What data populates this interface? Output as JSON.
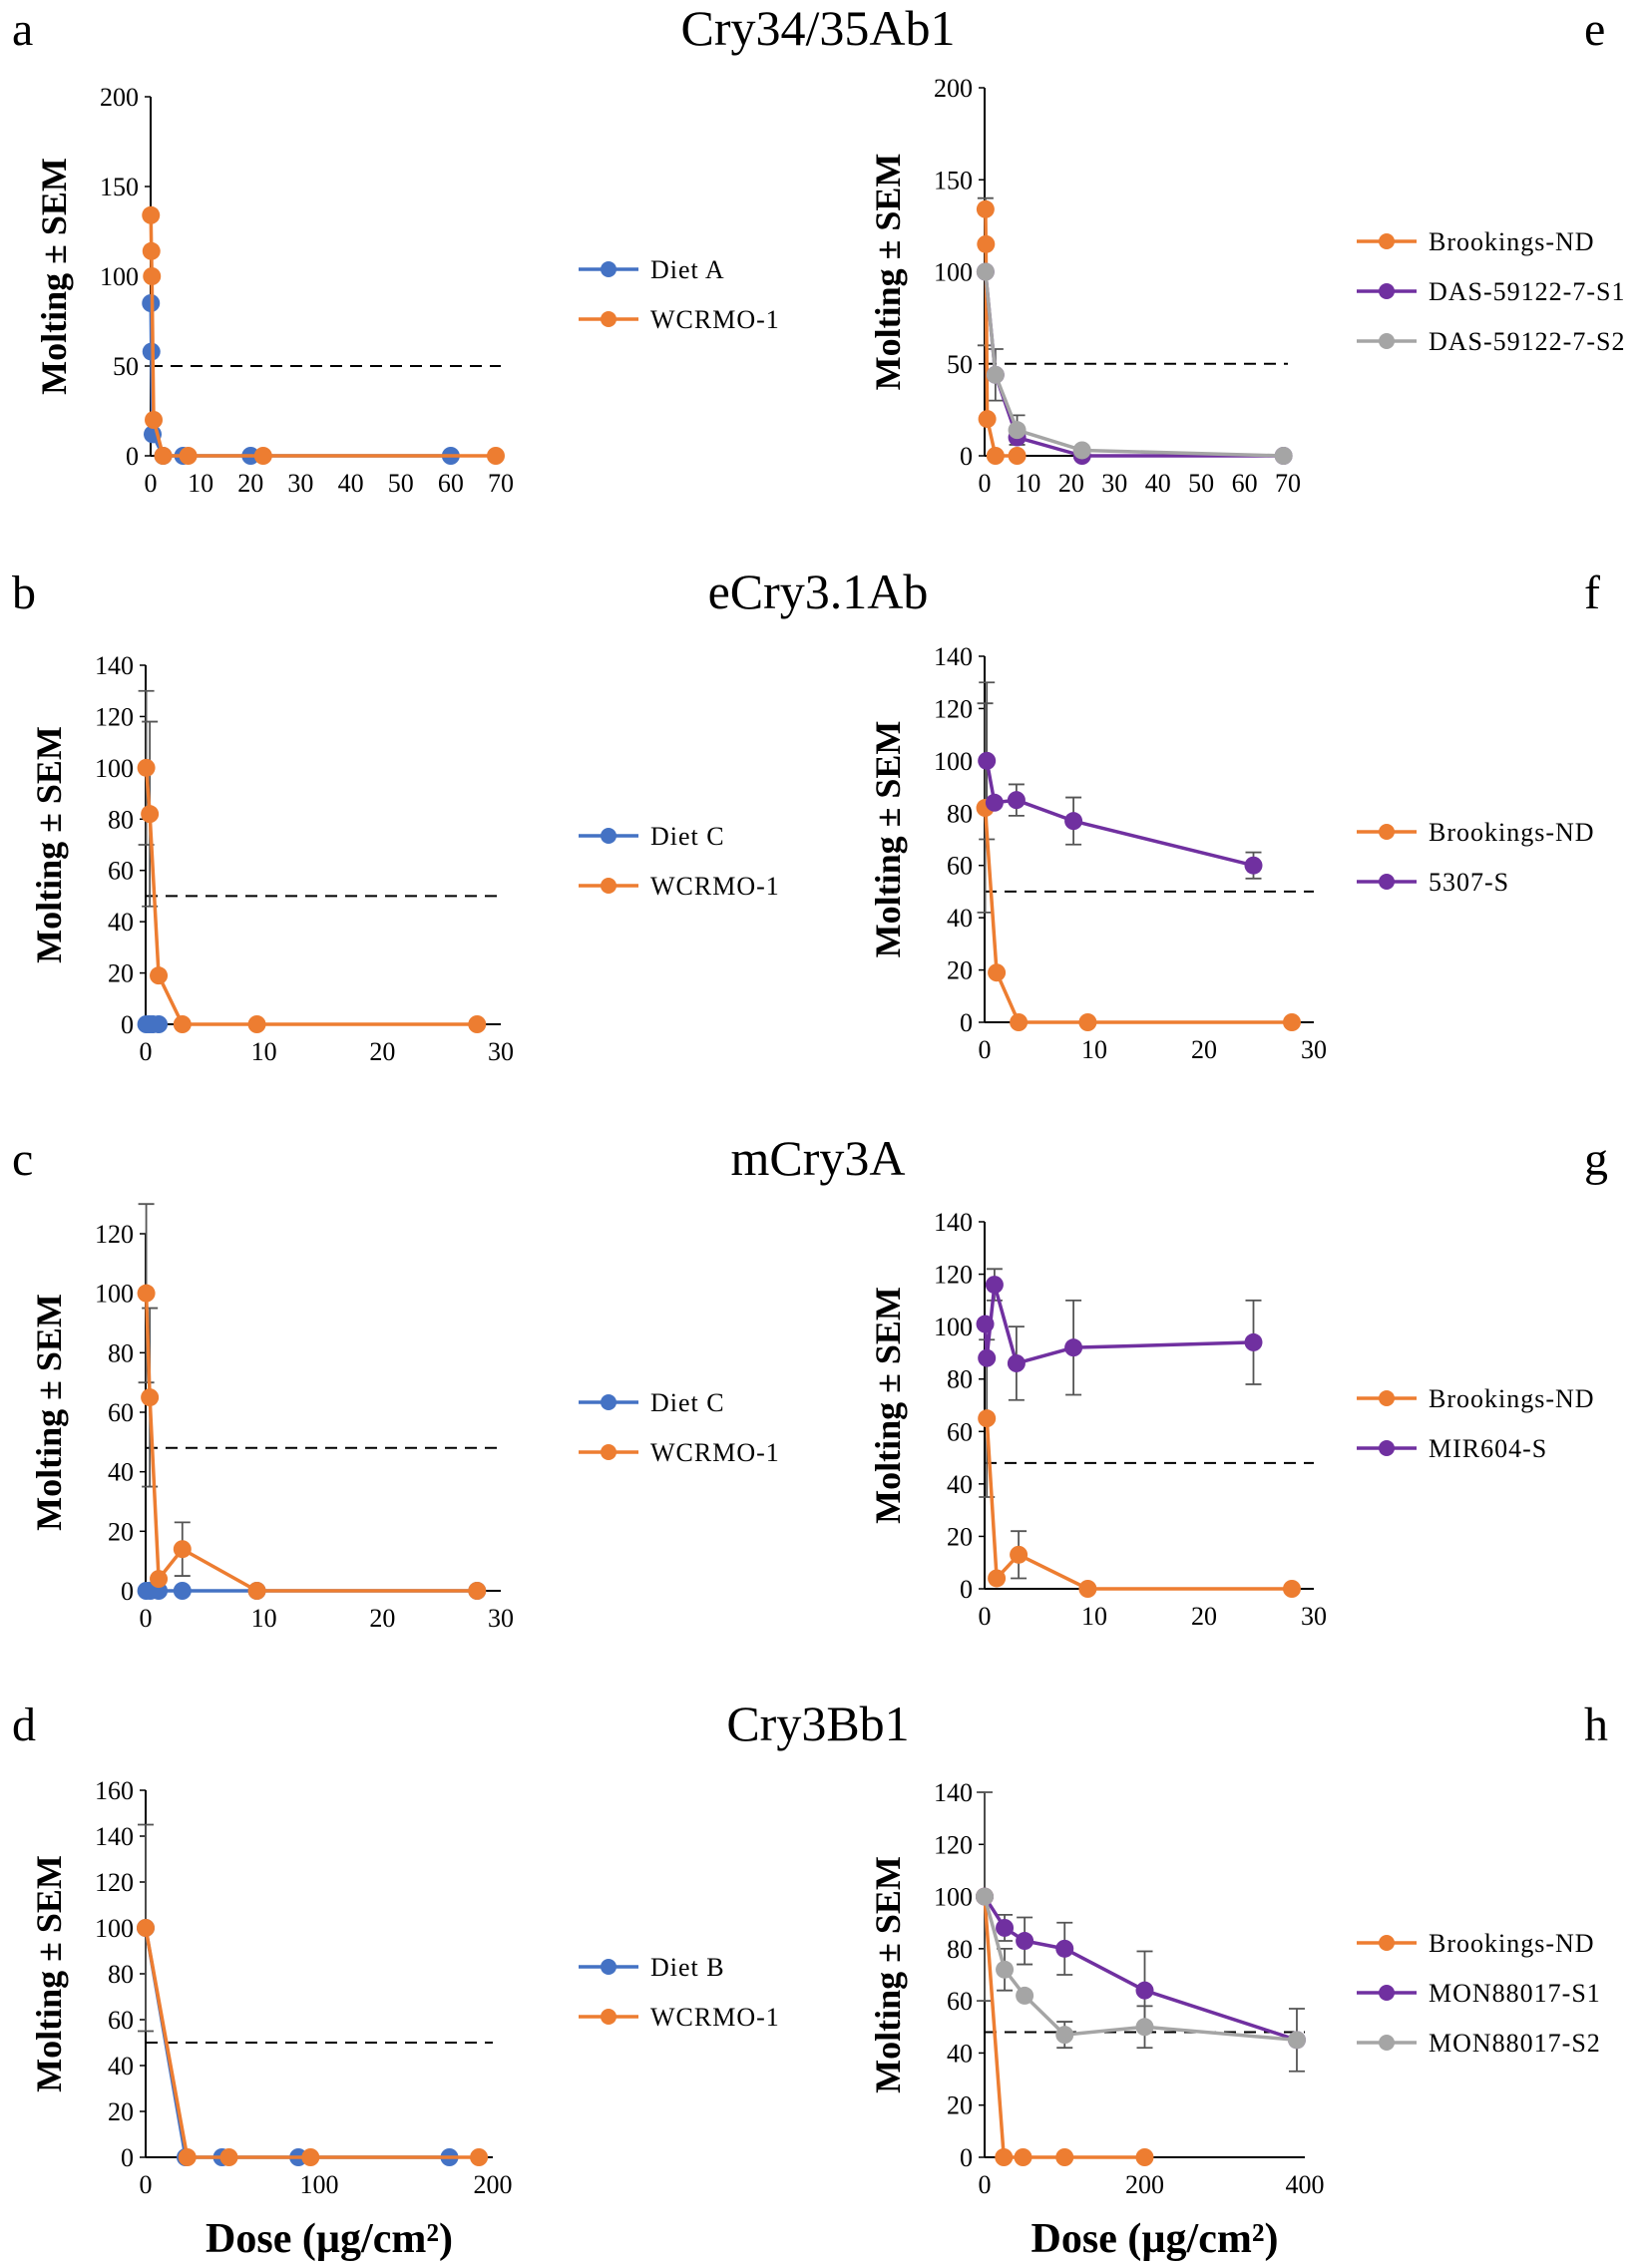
{
  "figure": {
    "row_titles": [
      "Cry34/35Ab1",
      "eCry3.1Ab",
      "mCry3A",
      "Cry3Bb1"
    ],
    "ylabel": "Molting ± SEM",
    "xlabel": "Dose (µg/cm²)"
  },
  "colors": {
    "blue": "#4472C4",
    "orange": "#ED7D31",
    "purple": "#7030A0",
    "gray": "#A5A5A5",
    "dash": "#000000",
    "errbar": "#555555"
  },
  "chart_data": [
    {
      "id": "a",
      "panel_label": "a",
      "type": "line",
      "ylabel": "Molting ± SEM",
      "xlabel": "",
      "xlim": [
        0,
        70
      ],
      "ylim": [
        0,
        200
      ],
      "xticks": [
        0,
        10,
        20,
        30,
        40,
        50,
        60,
        70
      ],
      "yticks": [
        0,
        50,
        100,
        150,
        200
      ],
      "threshold": 50,
      "series": [
        {
          "name": "Diet A",
          "color": "blue",
          "points": [
            [
              0.05,
              85
            ],
            [
              0.15,
              58
            ],
            [
              0.4,
              12
            ],
            [
              2.5,
              0
            ],
            [
              6.5,
              0
            ],
            [
              20,
              0
            ],
            [
              60,
              0
            ]
          ]
        },
        {
          "name": "WCRMO-1",
          "color": "orange",
          "points": [
            [
              0.05,
              134
            ],
            [
              0.15,
              114
            ],
            [
              0.25,
              100
            ],
            [
              0.6,
              20
            ],
            [
              2.5,
              0
            ],
            [
              7.5,
              0
            ],
            [
              22.5,
              0
            ],
            [
              69,
              0
            ]
          ]
        }
      ],
      "errors": []
    },
    {
      "id": "e",
      "panel_label": "e",
      "type": "line",
      "ylabel": "Molting ± SEM",
      "xlabel": "",
      "xlim": [
        0,
        70
      ],
      "ylim": [
        0,
        200
      ],
      "xticks": [
        0,
        10,
        20,
        30,
        40,
        50,
        60,
        70
      ],
      "yticks": [
        0,
        50,
        100,
        150,
        200
      ],
      "threshold": 50,
      "series": [
        {
          "name": "Brookings-ND",
          "color": "orange",
          "points": [
            [
              0.2,
              134
            ],
            [
              0.3,
              115
            ],
            [
              0.6,
              20
            ],
            [
              2.5,
              0
            ],
            [
              7.5,
              0
            ]
          ]
        },
        {
          "name": "DAS-59122-7-S1",
          "color": "purple",
          "points": [
            [
              0.2,
              100
            ],
            [
              2.5,
              44
            ],
            [
              7.5,
              10
            ],
            [
              22.5,
              0
            ],
            [
              69,
              0
            ]
          ]
        },
        {
          "name": "DAS-59122-7-S2",
          "color": "gray",
          "points": [
            [
              0.2,
              100
            ],
            [
              2.5,
              44
            ],
            [
              7.5,
              14
            ],
            [
              22.5,
              3
            ],
            [
              69,
              0
            ]
          ]
        }
      ],
      "errors": [
        [
          0.2,
          100,
          40
        ],
        [
          2.5,
          44,
          14
        ],
        [
          7.5,
          14,
          8
        ]
      ]
    },
    {
      "id": "b",
      "panel_label": "b",
      "type": "line",
      "ylabel": "Molting ± SEM",
      "xlabel": "",
      "xlim": [
        0,
        30
      ],
      "ylim": [
        0,
        140
      ],
      "xticks": [
        0,
        10,
        20,
        30
      ],
      "yticks": [
        0,
        20,
        40,
        60,
        80,
        100,
        120,
        140
      ],
      "threshold": 50,
      "series": [
        {
          "name": "Diet C",
          "color": "blue",
          "points": [
            [
              0.05,
              0
            ],
            [
              0.3,
              0
            ],
            [
              0.6,
              0
            ],
            [
              1.1,
              0
            ]
          ]
        },
        {
          "name": "WCRMO-1",
          "color": "orange",
          "points": [
            [
              0.05,
              100
            ],
            [
              0.35,
              82
            ],
            [
              1.1,
              19
            ],
            [
              3.1,
              0
            ],
            [
              9.4,
              0
            ],
            [
              28,
              0
            ]
          ]
        }
      ],
      "errors": [
        [
          0.05,
          100,
          30
        ],
        [
          0.35,
          82,
          36
        ]
      ]
    },
    {
      "id": "f",
      "panel_label": "f",
      "type": "line",
      "ylabel": "Molting ± SEM",
      "xlabel": "",
      "xlim": [
        0,
        30
      ],
      "ylim": [
        0,
        140
      ],
      "xticks": [
        0,
        10,
        20,
        30
      ],
      "yticks": [
        0,
        20,
        40,
        60,
        80,
        100,
        120,
        140
      ],
      "threshold": 50,
      "series": [
        {
          "name": "Brookings-ND",
          "color": "orange",
          "points": [
            [
              0.05,
              82
            ],
            [
              1.1,
              19
            ],
            [
              3.1,
              0
            ],
            [
              9.4,
              0
            ],
            [
              28,
              0
            ]
          ]
        },
        {
          "name": "5307-S",
          "color": "purple",
          "points": [
            [
              0.2,
              100
            ],
            [
              0.9,
              84
            ],
            [
              2.9,
              85
            ],
            [
              8.1,
              77
            ],
            [
              24.5,
              60
            ]
          ]
        }
      ],
      "errors": [
        [
          0.2,
          100,
          30
        ],
        [
          0.05,
          82,
          40
        ],
        [
          2.9,
          85,
          6
        ],
        [
          8.1,
          77,
          9
        ],
        [
          24.5,
          60,
          5
        ]
      ]
    },
    {
      "id": "c",
      "panel_label": "c",
      "type": "line",
      "ylabel": "Molting ± SEM",
      "xlabel": "",
      "xlim": [
        0,
        30
      ],
      "ylim": [
        0,
        120
      ],
      "xticks": [
        0,
        10,
        20,
        30
      ],
      "yticks": [
        0,
        20,
        40,
        60,
        80,
        100,
        120
      ],
      "threshold": 48,
      "series": [
        {
          "name": "Diet C",
          "color": "blue",
          "points": [
            [
              0.05,
              0
            ],
            [
              0.4,
              0
            ],
            [
              1.1,
              0
            ],
            [
              3.1,
              0
            ],
            [
              9.4,
              0
            ],
            [
              28,
              0
            ]
          ]
        },
        {
          "name": "WCRMO-1",
          "color": "orange",
          "points": [
            [
              0.05,
              100
            ],
            [
              0.35,
              65
            ],
            [
              1.1,
              4
            ],
            [
              3.1,
              14
            ],
            [
              9.4,
              0
            ],
            [
              28,
              0
            ]
          ]
        }
      ],
      "errors": [
        [
          0.05,
          100,
          30
        ],
        [
          0.35,
          65,
          30
        ],
        [
          3.1,
          14,
          9
        ]
      ]
    },
    {
      "id": "g",
      "panel_label": "g",
      "type": "line",
      "ylabel": "Molting ± SEM",
      "xlabel": "",
      "xlim": [
        0,
        30
      ],
      "ylim": [
        0,
        140
      ],
      "xticks": [
        0,
        10,
        20,
        30
      ],
      "yticks": [
        0,
        20,
        40,
        60,
        80,
        100,
        120,
        140
      ],
      "threshold": 48,
      "series": [
        {
          "name": "Brookings-ND",
          "color": "orange",
          "points": [
            [
              0.2,
              65
            ],
            [
              1.1,
              4
            ],
            [
              3.1,
              13
            ],
            [
              9.4,
              0
            ],
            [
              28,
              0
            ]
          ]
        },
        {
          "name": "MIR604-S",
          "color": "purple",
          "points": [
            [
              0.05,
              101
            ],
            [
              0.2,
              88
            ],
            [
              0.9,
              116
            ],
            [
              2.9,
              86
            ],
            [
              8.1,
              92
            ],
            [
              24.5,
              94
            ]
          ]
        }
      ],
      "errors": [
        [
          0.2,
          65,
          30
        ],
        [
          0.9,
          116,
          6
        ],
        [
          2.9,
          86,
          14
        ],
        [
          8.1,
          92,
          18
        ],
        [
          24.5,
          94,
          16
        ],
        [
          3.1,
          13,
          9
        ]
      ]
    },
    {
      "id": "d",
      "panel_label": "d",
      "type": "line",
      "ylabel": "Molting ± SEM",
      "xlabel": "Dose (µg/cm²)",
      "xlim": [
        0,
        200
      ],
      "ylim": [
        0,
        160
      ],
      "xticks": [
        0,
        100,
        200
      ],
      "yticks": [
        0,
        20,
        40,
        60,
        80,
        100,
        120,
        140,
        160
      ],
      "threshold": 50,
      "series": [
        {
          "name": "Diet B",
          "color": "blue",
          "points": [
            [
              0,
              100
            ],
            [
              23,
              0
            ],
            [
              44,
              0
            ],
            [
              88,
              0
            ],
            [
              175,
              0
            ]
          ]
        },
        {
          "name": "WCRMO-1",
          "color": "orange",
          "points": [
            [
              0,
              100
            ],
            [
              24,
              0
            ],
            [
              48,
              0
            ],
            [
              95,
              0
            ],
            [
              192,
              0
            ]
          ]
        }
      ],
      "errors": [
        [
          0,
          100,
          45
        ]
      ]
    },
    {
      "id": "h",
      "panel_label": "h",
      "type": "line",
      "ylabel": "Molting ± SEM",
      "xlabel": "Dose (µg/cm²)",
      "xlim": [
        0,
        400
      ],
      "ylim": [
        0,
        140
      ],
      "xticks": [
        0,
        200,
        400
      ],
      "yticks": [
        0,
        20,
        40,
        60,
        80,
        100,
        120,
        140
      ],
      "threshold": 48,
      "series": [
        {
          "name": "Brookings-ND",
          "color": "orange",
          "points": [
            [
              0,
              100
            ],
            [
              24,
              0
            ],
            [
              48,
              0
            ],
            [
              100,
              0
            ],
            [
              200,
              0
            ]
          ]
        },
        {
          "name": "MON88017-S1",
          "color": "purple",
          "points": [
            [
              0,
              100
            ],
            [
              25,
              88
            ],
            [
              50,
              83
            ],
            [
              100,
              80
            ],
            [
              200,
              64
            ],
            [
              390,
              45
            ]
          ]
        },
        {
          "name": "MON88017-S2",
          "color": "gray",
          "points": [
            [
              0,
              100
            ],
            [
              25,
              72
            ],
            [
              50,
              62
            ],
            [
              100,
              47
            ],
            [
              200,
              50
            ],
            [
              390,
              45
            ]
          ]
        }
      ],
      "errors": [
        [
          0,
          100,
          40
        ],
        [
          25,
          88,
          5
        ],
        [
          25,
          72,
          8
        ],
        [
          50,
          83,
          9
        ],
        [
          100,
          80,
          10
        ],
        [
          100,
          47,
          5
        ],
        [
          200,
          64,
          15
        ],
        [
          200,
          50,
          8
        ],
        [
          390,
          45,
          12
        ]
      ]
    }
  ]
}
